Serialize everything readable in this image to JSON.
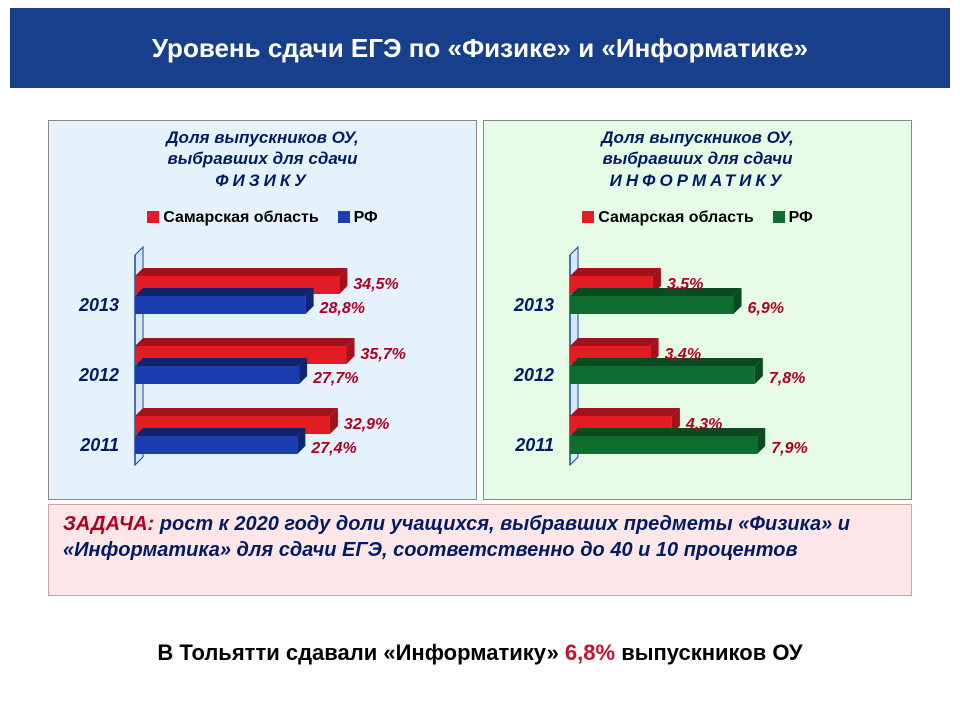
{
  "title": "Уровень сдачи ЕГЭ по «Физике» и «Информатике»",
  "legend": {
    "series1_label": "Самарская область",
    "series2_label": "РФ"
  },
  "colors": {
    "title_bg": "#173f8c",
    "title_text": "#ffffff",
    "panel_physics_bg": "#e6f2fb",
    "panel_informatics_bg": "#e6fbe6",
    "panel_title_text": "#001a66",
    "series_samara": "#e31c23",
    "series_samara_dark": "#a3121a",
    "series_rf_physics": "#1a3db0",
    "series_rf_physics_dark": "#0f2570",
    "series_rf_informatics": "#0f6e2f",
    "series_rf_informatics_dark": "#094a20",
    "value_label": "#b00020",
    "year_label": "#001a66",
    "task_bg": "#fde6e8",
    "task_lead": "#b00020",
    "task_text": "#001a66",
    "footer_highlight": "#c8102e",
    "axis": "#184a9e"
  },
  "physics": {
    "panel_title_l1": "Доля выпускников ОУ,",
    "panel_title_l2": "выбравших для сдачи",
    "panel_title_l3": "ФИЗИКУ",
    "rf_color_key": "#1a3db0",
    "xlim": 40,
    "years": [
      "2013",
      "2012",
      "2011"
    ],
    "series": {
      "samara": [
        34.5,
        35.7,
        32.9
      ],
      "rf": [
        28.8,
        27.7,
        27.4
      ]
    },
    "labels": {
      "samara": [
        "34,5%",
        "35,7%",
        "32,9%"
      ],
      "rf": [
        "28,8%",
        "27,7%",
        "27,4%"
      ]
    }
  },
  "informatics": {
    "panel_title_l1": "Доля выпускников ОУ,",
    "panel_title_l2": "выбравших для сдачи",
    "panel_title_l3": "ИНФОРМАТИКУ",
    "rf_color_key": "#0f6e2f",
    "xlim": 10,
    "years": [
      "2013",
      "2012",
      "2011"
    ],
    "series": {
      "samara": [
        3.5,
        3.4,
        4.3
      ],
      "rf": [
        6.9,
        7.8,
        7.9
      ]
    },
    "labels": {
      "samara": [
        "3,5%",
        "3,4%",
        "4,3%"
      ],
      "rf": [
        "6,9%",
        "7,8%",
        "7,9%"
      ]
    }
  },
  "task": {
    "lead": "ЗАДАЧА:",
    "rest": " рост к 2020 году доли учащихся, выбравших предметы «Физика» и «Информатика» для сдачи ЕГЭ, соответственно до 40 и 10 процентов"
  },
  "footer": {
    "pre": "В Тольятти сдавали «Информатику» ",
    "hl": "6,8%",
    "post": " выпускников ОУ"
  },
  "chart_style": {
    "bar_half_height": 9,
    "depth": 8,
    "group_spacing": 70,
    "pair_gap": 20,
    "label_fontsize": 16,
    "label_weight": "bold",
    "label_style": "italic"
  }
}
